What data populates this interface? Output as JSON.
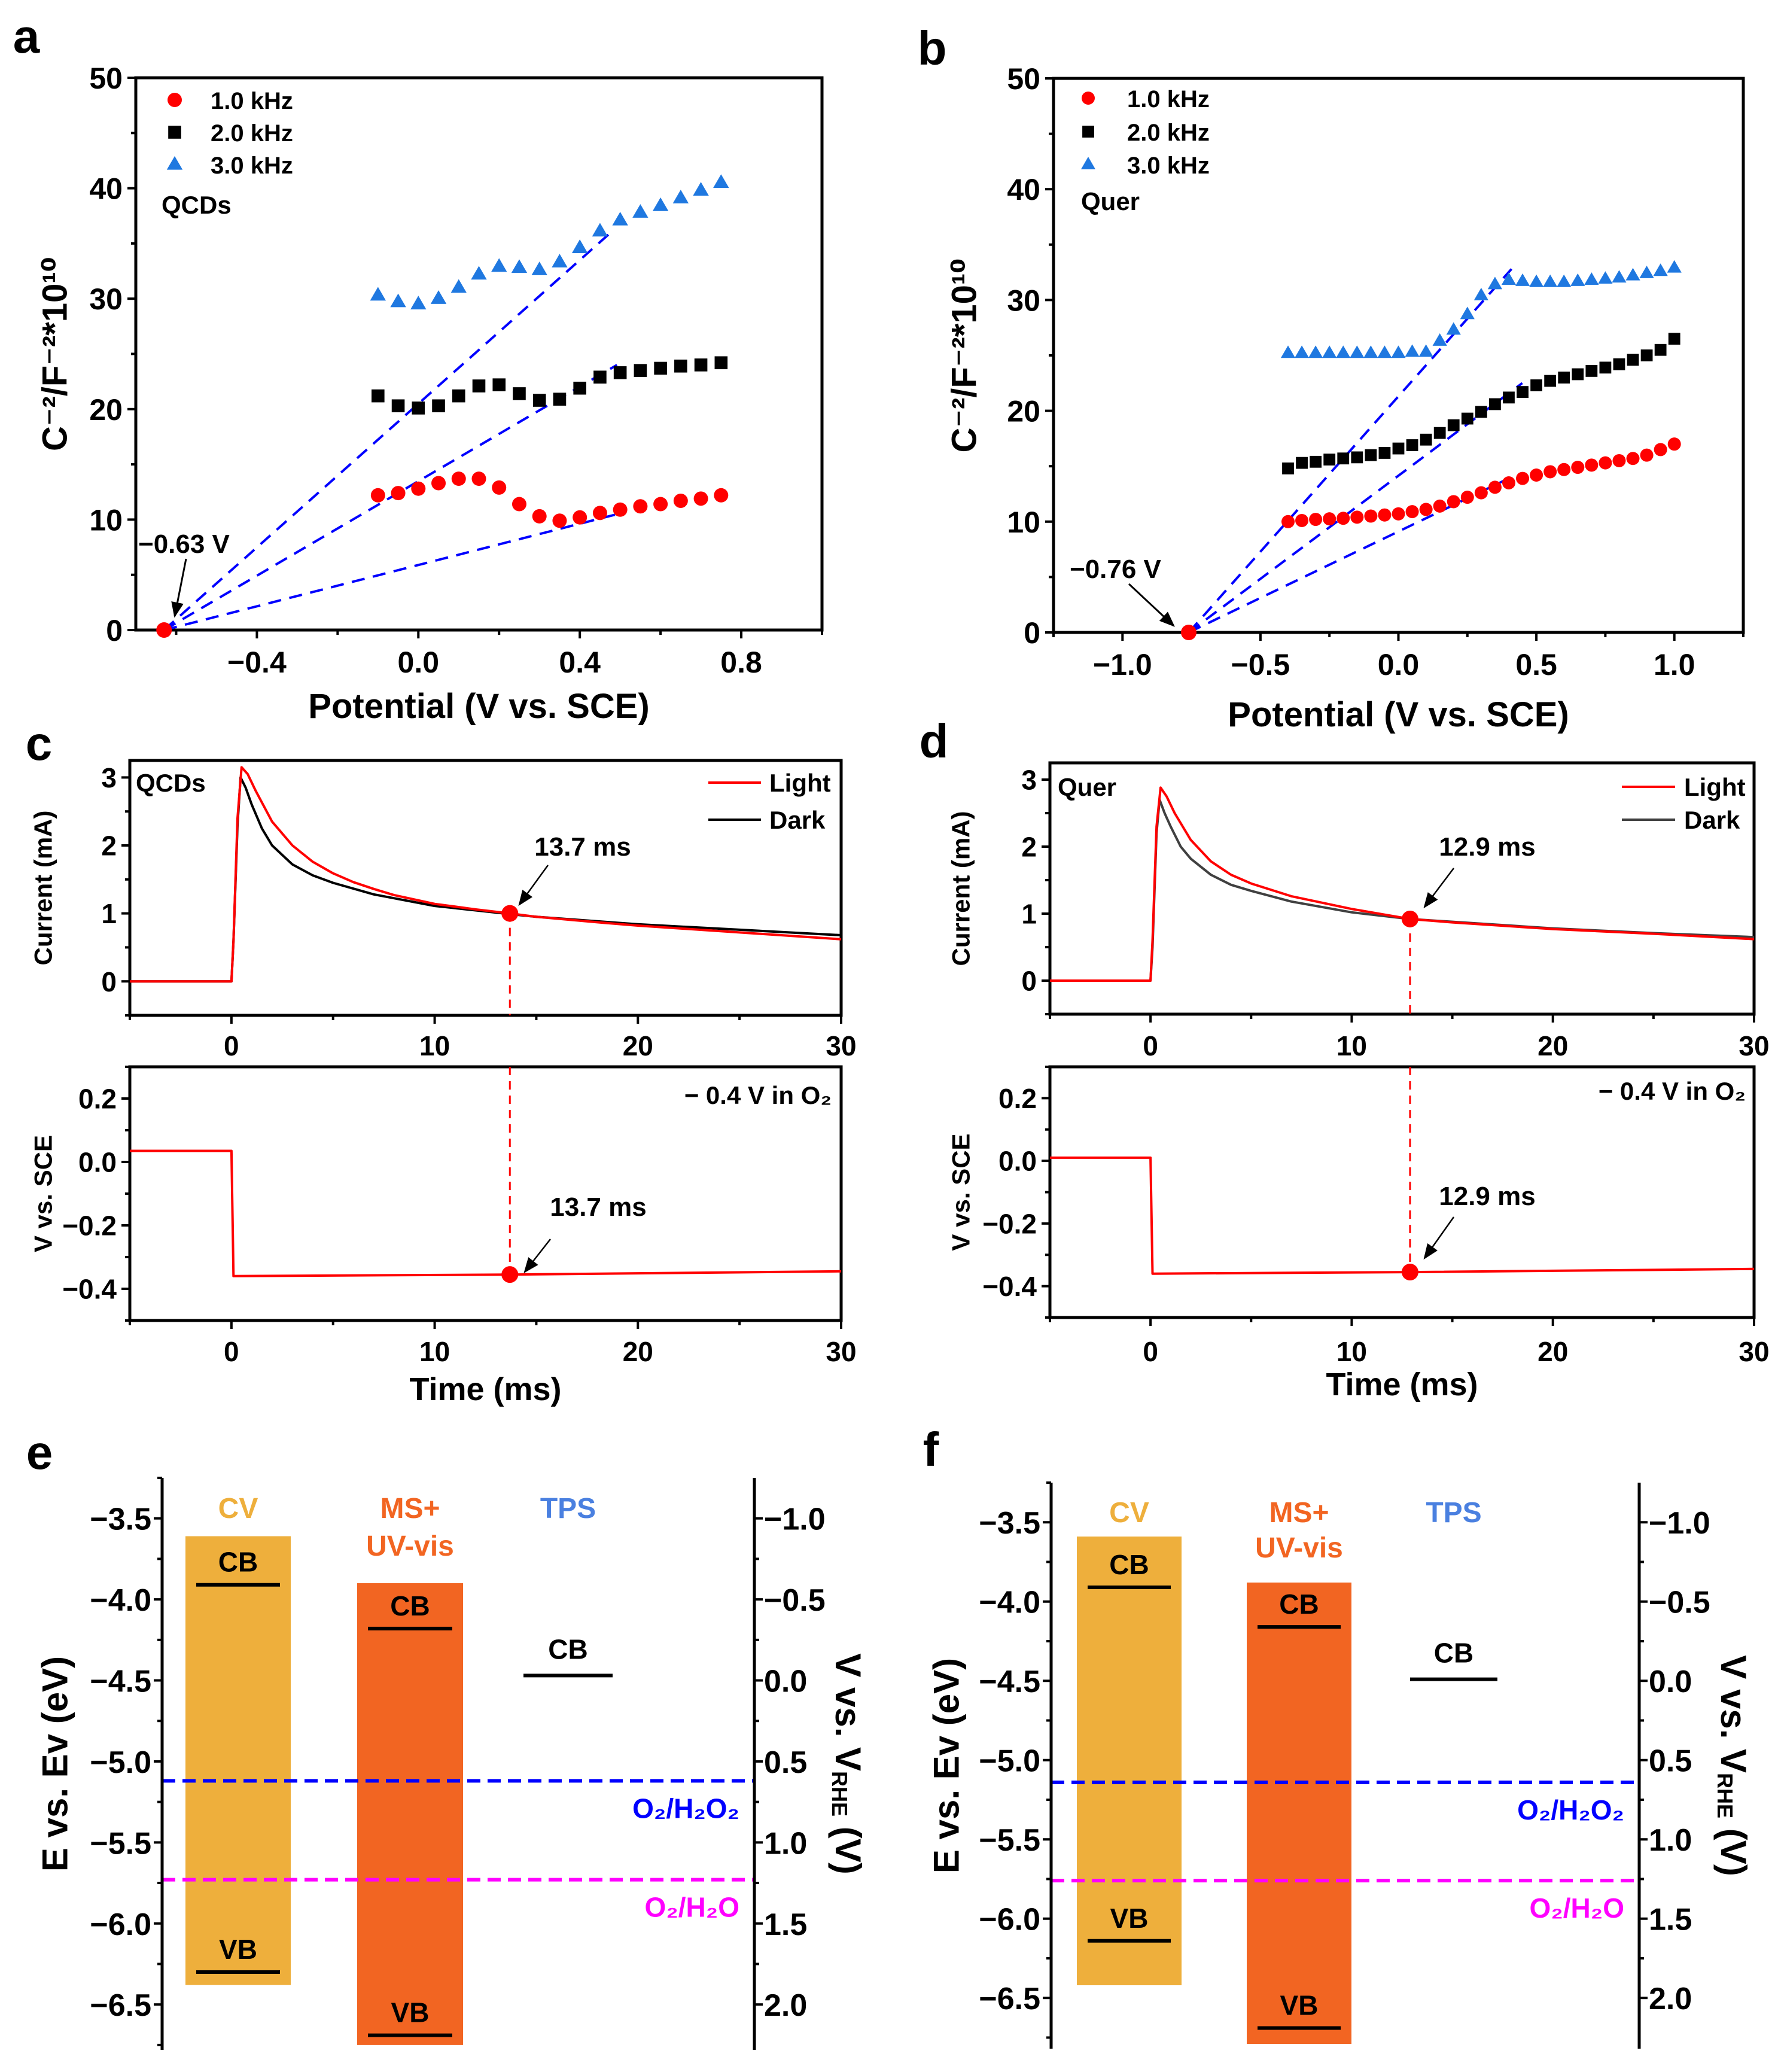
{
  "chart_data": [
    {
      "panel": "a",
      "type": "scatter",
      "sample": "QCDs",
      "xlabel": "Potential (V vs. SCE)",
      "ylabel": "C⁻²/F⁻²*10¹⁰",
      "xlim": [
        -0.7,
        1.0
      ],
      "ylim": [
        0,
        50
      ],
      "xticks": [
        -0.4,
        0.0,
        0.4,
        0.8
      ],
      "xtick_labels": [
        "−0.4",
        "0.0",
        "0.4",
        "0.8"
      ],
      "yticks": [
        0,
        10,
        20,
        30,
        40,
        50
      ],
      "ytick_labels": [
        "0",
        "10",
        "20",
        "30",
        "40",
        "50"
      ],
      "legend_position": "top-left",
      "grid": false,
      "x": [
        -0.1,
        -0.05,
        0,
        0.05,
        0.1,
        0.15,
        0.2,
        0.25,
        0.3,
        0.35,
        0.4,
        0.45,
        0.5,
        0.55,
        0.6,
        0.65,
        0.7,
        0.75
      ],
      "series": [
        {
          "name": "1.0 kHz",
          "marker": "circle",
          "color": "#FF0000",
          "values": [
            12.2,
            12.4,
            12.8,
            13.3,
            13.7,
            13.7,
            12.9,
            11.4,
            10.3,
            9.9,
            10.2,
            10.6,
            10.9,
            11.2,
            11.4,
            11.7,
            11.9,
            12.2
          ]
        },
        {
          "name": "2.0 kHz",
          "marker": "square",
          "color": "#000000",
          "values": [
            21.2,
            20.3,
            20.1,
            20.3,
            21.2,
            22.1,
            22.2,
            21.4,
            20.8,
            20.9,
            21.9,
            22.9,
            23.3,
            23.5,
            23.7,
            23.9,
            24.0,
            24.2
          ]
        },
        {
          "name": "3.0 kHz",
          "marker": "triangle",
          "color": "#1F78E0",
          "values": [
            30.3,
            29.7,
            29.5,
            30.0,
            31.0,
            32.2,
            32.9,
            32.8,
            32.6,
            33.3,
            34.6,
            36.1,
            37.1,
            37.8,
            38.4,
            39.1,
            39.8,
            40.5
          ]
        }
      ],
      "fit_line_color": "#0000FF",
      "fit_lines": [
        {
          "from": [
            -0.63,
            0
          ],
          "to": [
            0.477,
            36.0
          ]
        },
        {
          "from": [
            -0.63,
            0
          ],
          "to": [
            0.492,
            24.0
          ]
        },
        {
          "from": [
            -0.63,
            0
          ],
          "to": [
            0.515,
            10.7
          ]
        }
      ],
      "annotation": {
        "text": "−0.63 V",
        "point": [
          -0.63,
          0
        ],
        "color": "#FF0000"
      }
    },
    {
      "panel": "b",
      "type": "scatter",
      "sample": "Quer",
      "xlabel": "Potential (V vs. SCE)",
      "ylabel": "C⁻²/F⁻²*10¹⁰",
      "xlim": [
        -1.25,
        1.25
      ],
      "ylim": [
        0,
        50
      ],
      "xticks": [
        -1.0,
        -0.5,
        0.0,
        0.5,
        1.0
      ],
      "xtick_labels": [
        "−1.0",
        "−0.5",
        "0.0",
        "0.5",
        "1.0"
      ],
      "yticks": [
        0,
        10,
        20,
        30,
        40,
        50
      ],
      "ytick_labels": [
        "0",
        "10",
        "20",
        "30",
        "40",
        "50"
      ],
      "legend_position": "top-left",
      "grid": false,
      "x": [
        -0.4,
        -0.35,
        -0.3,
        -0.25,
        -0.2,
        -0.15,
        -0.1,
        -0.05,
        0,
        0.05,
        0.1,
        0.15,
        0.2,
        0.25,
        0.3,
        0.35,
        0.4,
        0.45,
        0.5,
        0.55,
        0.6,
        0.65,
        0.7,
        0.75,
        0.8,
        0.85,
        0.9,
        0.95,
        1.0
      ],
      "series": [
        {
          "name": "1.0 kHz",
          "marker": "circle",
          "color": "#FF0000",
          "values": [
            10.0,
            10.1,
            10.2,
            10.25,
            10.3,
            10.4,
            10.5,
            10.6,
            10.7,
            10.9,
            11.1,
            11.4,
            11.8,
            12.2,
            12.6,
            13.1,
            13.5,
            13.9,
            14.2,
            14.5,
            14.7,
            14.9,
            15.1,
            15.3,
            15.5,
            15.7,
            16.0,
            16.5,
            17.0
          ]
        },
        {
          "name": "2.0 kHz",
          "marker": "square",
          "color": "#000000",
          "values": [
            14.8,
            15.3,
            15.4,
            15.6,
            15.7,
            15.8,
            16.0,
            16.2,
            16.6,
            16.9,
            17.4,
            18.0,
            18.7,
            19.3,
            19.9,
            20.6,
            21.2,
            21.7,
            22.3,
            22.7,
            23.0,
            23.3,
            23.6,
            23.9,
            24.2,
            24.6,
            25.0,
            25.5,
            26.5
          ]
        },
        {
          "name": "3.0 kHz",
          "marker": "triangle",
          "color": "#1F78E0",
          "values": [
            25.2,
            25.2,
            25.2,
            25.2,
            25.2,
            25.2,
            25.2,
            25.2,
            25.2,
            25.3,
            25.3,
            26.3,
            27.3,
            28.7,
            30.4,
            31.4,
            31.8,
            31.7,
            31.6,
            31.6,
            31.6,
            31.7,
            31.8,
            31.9,
            32.0,
            32.2,
            32.4,
            32.6,
            32.9
          ]
        }
      ],
      "fit_line_color": "#0000FF",
      "fit_lines": [
        {
          "from": [
            -0.76,
            0
          ],
          "to": [
            0.41,
            32.8
          ]
        },
        {
          "from": [
            -0.76,
            0
          ],
          "to": [
            0.449,
            22.5
          ]
        },
        {
          "from": [
            -0.76,
            0
          ],
          "to": [
            0.4,
            13.9
          ]
        }
      ],
      "annotation": {
        "text": "−0.76 V",
        "point": [
          -0.76,
          0
        ],
        "color": "#FF0000"
      }
    },
    {
      "panel": "c",
      "type": "line",
      "sample": "QCDs",
      "xlabel": "",
      "ylabel": "Current (mA)",
      "xlim": [
        -5,
        30
      ],
      "ylim": [
        -0.5,
        3.25
      ],
      "xticks": [
        0,
        10,
        20,
        30
      ],
      "xtick_labels": [
        "0",
        "10",
        "20",
        "30"
      ],
      "yticks": [
        0,
        1,
        2,
        3
      ],
      "ytick_labels": [
        "0",
        "1",
        "2",
        "3"
      ],
      "legend_position": "top-right",
      "series": [
        {
          "name": "Light",
          "color": "#FF0000",
          "points": [
            [
              -5,
              0
            ],
            [
              0,
              0
            ],
            [
              0.1,
              0.6
            ],
            [
              0.3,
              2.4
            ],
            [
              0.5,
              3.15
            ],
            [
              0.8,
              3.05
            ],
            [
              1.2,
              2.8
            ],
            [
              2,
              2.35
            ],
            [
              3,
              2.0
            ],
            [
              4,
              1.76
            ],
            [
              5,
              1.59
            ],
            [
              6,
              1.46
            ],
            [
              7,
              1.36
            ],
            [
              8,
              1.27
            ],
            [
              10,
              1.14
            ],
            [
              12,
              1.06
            ],
            [
              13.7,
              1.0
            ],
            [
              15,
              0.95
            ],
            [
              18,
              0.87
            ],
            [
              20,
              0.82
            ],
            [
              25,
              0.72
            ],
            [
              30,
              0.62
            ]
          ]
        },
        {
          "name": "Dark",
          "color": "#000000",
          "points": [
            [
              -5,
              0
            ],
            [
              0,
              0
            ],
            [
              0.1,
              0.6
            ],
            [
              0.3,
              2.3
            ],
            [
              0.45,
              3.0
            ],
            [
              0.7,
              2.85
            ],
            [
              1,
              2.6
            ],
            [
              1.5,
              2.25
            ],
            [
              2,
              2.0
            ],
            [
              3,
              1.72
            ],
            [
              4,
              1.56
            ],
            [
              5,
              1.45
            ],
            [
              7,
              1.28
            ],
            [
              10,
              1.11
            ],
            [
              13.7,
              0.99
            ],
            [
              15,
              0.95
            ],
            [
              20,
              0.84
            ],
            [
              25,
              0.76
            ],
            [
              30,
              0.68
            ]
          ]
        }
      ],
      "marker": {
        "x": 13.7,
        "y": 1.0,
        "label": "13.7 ms",
        "color": "#FF0000"
      }
    },
    {
      "panel": "c",
      "type": "line",
      "condition": "− 0.4 V in O₂",
      "xlabel": "Time (ms)",
      "ylabel": "V vs. SCE",
      "xlim": [
        -5,
        30
      ],
      "ylim": [
        -0.5,
        0.3
      ],
      "xticks": [
        0,
        10,
        20,
        30
      ],
      "xtick_labels": [
        "0",
        "10",
        "20",
        "30"
      ],
      "yticks": [
        -0.4,
        -0.2,
        0.0,
        0.2
      ],
      "ytick_labels": [
        "−0.4",
        "−0.2",
        "0.0",
        "0.2"
      ],
      "series": [
        {
          "color": "#FF0000",
          "points": [
            [
              -5,
              0.035
            ],
            [
              0,
              0.035
            ],
            [
              0.1,
              -0.36
            ],
            [
              13.7,
              -0.355
            ],
            [
              30,
              -0.345
            ]
          ]
        }
      ],
      "marker": {
        "x": 13.7,
        "y": -0.355,
        "label": "13.7 ms",
        "color": "#FF0000"
      }
    },
    {
      "panel": "d",
      "type": "line",
      "sample": "Quer",
      "xlabel": "",
      "ylabel": "Current (mA)",
      "xlim": [
        -5,
        30
      ],
      "ylim": [
        -0.5,
        3.25
      ],
      "xticks": [
        0,
        10,
        20,
        30
      ],
      "xtick_labels": [
        "0",
        "10",
        "20",
        "30"
      ],
      "yticks": [
        0,
        1,
        2,
        3
      ],
      "ytick_labels": [
        "0",
        "1",
        "2",
        "3"
      ],
      "legend_position": "top-right",
      "series": [
        {
          "name": "Light",
          "color": "#FF0000",
          "points": [
            [
              -5,
              0
            ],
            [
              0,
              0
            ],
            [
              0.1,
              0.6
            ],
            [
              0.3,
              2.3
            ],
            [
              0.5,
              2.88
            ],
            [
              0.8,
              2.75
            ],
            [
              1.2,
              2.5
            ],
            [
              2,
              2.1
            ],
            [
              3,
              1.78
            ],
            [
              4,
              1.58
            ],
            [
              5,
              1.45
            ],
            [
              7,
              1.26
            ],
            [
              10,
              1.07
            ],
            [
              12.9,
              0.92
            ],
            [
              15,
              0.87
            ],
            [
              20,
              0.77
            ],
            [
              25,
              0.7
            ],
            [
              30,
              0.62
            ]
          ]
        },
        {
          "name": "Dark",
          "color": "#404040",
          "points": [
            [
              -5,
              0
            ],
            [
              0,
              0
            ],
            [
              0.1,
              0.5
            ],
            [
              0.3,
              2.2
            ],
            [
              0.45,
              2.7
            ],
            [
              0.7,
              2.5
            ],
            [
              1,
              2.3
            ],
            [
              1.5,
              2.0
            ],
            [
              2,
              1.82
            ],
            [
              3,
              1.58
            ],
            [
              4,
              1.43
            ],
            [
              5,
              1.34
            ],
            [
              7,
              1.18
            ],
            [
              10,
              1.02
            ],
            [
              12.9,
              0.92
            ],
            [
              20,
              0.78
            ],
            [
              25,
              0.71
            ],
            [
              30,
              0.65
            ]
          ]
        }
      ],
      "marker": {
        "x": 12.9,
        "y": 0.92,
        "label": "12.9 ms",
        "color": "#FF0000"
      }
    },
    {
      "panel": "d",
      "type": "line",
      "condition": "− 0.4 V in O₂",
      "xlabel": "Time (ms)",
      "ylabel": "V vs. SCE",
      "xlim": [
        -5,
        30
      ],
      "ylim": [
        -0.5,
        0.3
      ],
      "xticks": [
        0,
        10,
        20,
        30
      ],
      "xtick_labels": [
        "0",
        "10",
        "20",
        "30"
      ],
      "yticks": [
        -0.4,
        -0.2,
        0.0,
        0.2
      ],
      "ytick_labels": [
        "−0.4",
        "−0.2",
        "0.0",
        "0.2"
      ],
      "series": [
        {
          "color": "#FF0000",
          "points": [
            [
              -5,
              0.01
            ],
            [
              0,
              0.01
            ],
            [
              0.1,
              -0.36
            ],
            [
              12.9,
              -0.355
            ],
            [
              30,
              -0.345
            ]
          ]
        }
      ],
      "marker": {
        "x": 12.9,
        "y": -0.355,
        "label": "12.9 ms",
        "color": "#FF0000"
      }
    },
    {
      "panel": "e",
      "type": "band-diagram",
      "ylabel": "E vs. Ev (eV)",
      "ylabel_right": {
        "main": "V vs. V",
        "sub": "RHE",
        "tail": " (V)"
      },
      "ylim": [
        -3.25,
        -6.78
      ],
      "yticks": [
        -3.5,
        -4.0,
        -4.5,
        -5.0,
        -5.5,
        -6.0,
        -6.5
      ],
      "ytick_labels": [
        "−3.5",
        "−4.0",
        "−4.5",
        "−5.0",
        "−5.5",
        "−6.0",
        "−6.5"
      ],
      "right_ticks": [
        -1.0,
        -0.5,
        0.0,
        0.5,
        1.0,
        1.5,
        2.0
      ],
      "right_tick_labels": [
        "−1.0",
        "−0.5",
        "0.0",
        "0.5",
        "1.0",
        "1.5",
        "2.0"
      ],
      "columns": [
        {
          "label": [
            "CV"
          ],
          "label_color": "#EEAF3C",
          "bar_color": "#EEAF3C",
          "bar": [
            -3.61,
            -6.38
          ],
          "cb": -3.91,
          "vb": -6.3,
          "cb_label": "CB",
          "vb_label": "VB"
        },
        {
          "label": [
            "MS+",
            "UV-vis"
          ],
          "label_color": "#F26522",
          "bar_color": "#F26522",
          "bar": [
            -3.9,
            -6.75
          ],
          "cb": -4.18,
          "vb": -6.69,
          "cb_label": "CB",
          "vb_label": "VB"
        },
        {
          "label": [
            "TPS"
          ],
          "label_color": "#4A80E0",
          "cb": -4.47,
          "cb_label": "CB"
        }
      ],
      "reference_lines": [
        {
          "label": "O₂/H₂O₂",
          "value": -5.12,
          "color": "#0000FF"
        },
        {
          "label": "O₂/H₂O",
          "value": -5.73,
          "color": "#FF00FF"
        }
      ]
    },
    {
      "panel": "f",
      "type": "band-diagram",
      "ylabel": "E vs. Ev (eV)",
      "ylabel_right": {
        "main": "V vs. V",
        "sub": "RHE",
        "tail": " (V)"
      },
      "ylim": [
        -3.25,
        -6.82
      ],
      "yticks": [
        -3.5,
        -4.0,
        -4.5,
        -5.0,
        -5.5,
        -6.0,
        -6.5
      ],
      "ytick_labels": [
        "−3.5",
        "−4.0",
        "−4.5",
        "−5.0",
        "−5.5",
        "−6.0",
        "−6.5"
      ],
      "right_ticks": [
        -1.0,
        -0.5,
        0.0,
        0.5,
        1.0,
        1.5,
        2.0
      ],
      "right_tick_labels": [
        "−1.0",
        "−0.5",
        "0.0",
        "0.5",
        "1.0",
        "1.5",
        "2.0"
      ],
      "columns": [
        {
          "label": [
            "CV"
          ],
          "label_color": "#EEAF3C",
          "bar_color": "#EEAF3C",
          "bar": [
            -3.59,
            -6.42
          ],
          "cb": -3.91,
          "vb": -6.14,
          "cb_label": "CB",
          "vb_label": "VB"
        },
        {
          "label": [
            "MS+",
            "UV-vis"
          ],
          "label_color": "#F26522",
          "bar_color": "#F26522",
          "bar": [
            -3.88,
            -6.79
          ],
          "cb": -4.16,
          "vb": -6.69,
          "cb_label": "CB",
          "vb_label": "VB"
        },
        {
          "label": [
            "TPS"
          ],
          "label_color": "#4A80E0",
          "cb": -4.49,
          "cb_label": "CB"
        }
      ],
      "reference_lines": [
        {
          "label": "O₂/H₂O₂",
          "value": -5.14,
          "color": "#0000FF"
        },
        {
          "label": "O₂/H₂O",
          "value": -5.76,
          "color": "#FF00FF"
        }
      ]
    }
  ]
}
